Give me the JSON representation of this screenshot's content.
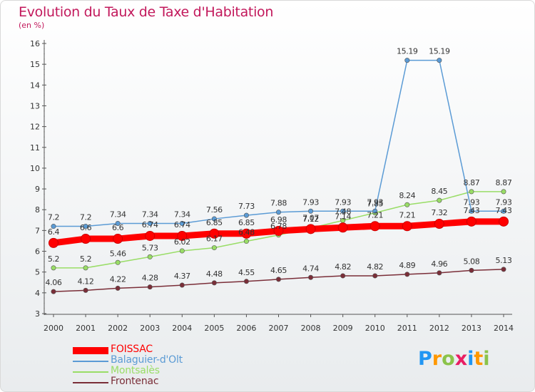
{
  "header": {
    "title": "Evolution du Taux de Taxe d'Habitation",
    "subtitle": "(en %)"
  },
  "logo": {
    "text": "Proxiti",
    "letters": [
      "P",
      "r",
      "o",
      "x",
      "i",
      "t",
      "i"
    ],
    "colors": [
      "#2196f3",
      "#ff9800",
      "#8bc34a",
      "#e91e63",
      "#2196f3",
      "#ff9800",
      "#8bc34a"
    ]
  },
  "chart_data": {
    "type": "line",
    "title": "Evolution du Taux de Taxe d'Habitation",
    "ylabel": "(en %)",
    "xlabel": "",
    "x": [
      "2000",
      "2001",
      "2002",
      "2003",
      "2004",
      "2005",
      "2006",
      "2007",
      "2008",
      "2009",
      "2010",
      "2011",
      "2012",
      "2013",
      "2014"
    ],
    "ylim": [
      3,
      16
    ],
    "yticks": [
      "3",
      "4",
      "5",
      "6",
      "7",
      "8",
      "9",
      "10",
      "11",
      "12",
      "13",
      "14",
      "15",
      "16"
    ],
    "grid": false,
    "legend": "bottom-left",
    "series": [
      {
        "name": "FOISSAC",
        "color": "#ff0000",
        "values": [
          6.4,
          6.6,
          6.6,
          6.74,
          6.74,
          6.85,
          6.85,
          6.98,
          7.07,
          7.14,
          7.21,
          7.21,
          7.32,
          7.43,
          7.43
        ],
        "labels": [
          "6.4",
          "6.6",
          "6.6",
          "6.74",
          "6.74",
          "6.85",
          "6.85",
          "6.98",
          "7.07",
          "7.14",
          "7.21",
          "7.21",
          "7.32",
          "7.43",
          "7.43"
        ]
      },
      {
        "name": "Balaguier-d'Olt",
        "color": "#5b9bd5",
        "values": [
          7.2,
          7.2,
          7.34,
          7.34,
          7.34,
          7.56,
          7.73,
          7.88,
          7.93,
          7.93,
          7.93,
          15.19,
          15.19,
          7.93,
          7.93
        ],
        "labels": [
          "7.2",
          "7.2",
          "7.34",
          "7.34",
          "7.34",
          "7.56",
          "7.73",
          "7.88",
          "7.93",
          "7.93",
          "7.93",
          "15.19",
          "15.19",
          "7.93",
          "7.93"
        ]
      },
      {
        "name": "Montsalès",
        "color": "#99dd66",
        "values": [
          5.2,
          5.2,
          5.46,
          5.73,
          6.02,
          6.17,
          6.48,
          6.78,
          7.12,
          7.48,
          7.85,
          8.24,
          8.45,
          8.87,
          8.87
        ],
        "labels": [
          "5.2",
          "5.2",
          "5.46",
          "5.73",
          "6.02",
          "6.17",
          "6.48",
          "6.78",
          "7.12",
          "7.48",
          "7.85",
          "8.24",
          "8.45",
          "8.87",
          "8.87"
        ]
      },
      {
        "name": "Frontenac",
        "color": "#7a2e38",
        "values": [
          4.06,
          4.12,
          4.22,
          4.28,
          4.37,
          4.48,
          4.55,
          4.65,
          4.74,
          4.82,
          4.82,
          4.89,
          4.96,
          5.08,
          5.13
        ],
        "labels": [
          "4.06",
          "4.12",
          "4.22",
          "4.28",
          "4.37",
          "4.48",
          "4.55",
          "4.65",
          "4.74",
          "4.82",
          "4.82",
          "4.89",
          "4.96",
          "5.08",
          "5.13"
        ]
      }
    ]
  }
}
